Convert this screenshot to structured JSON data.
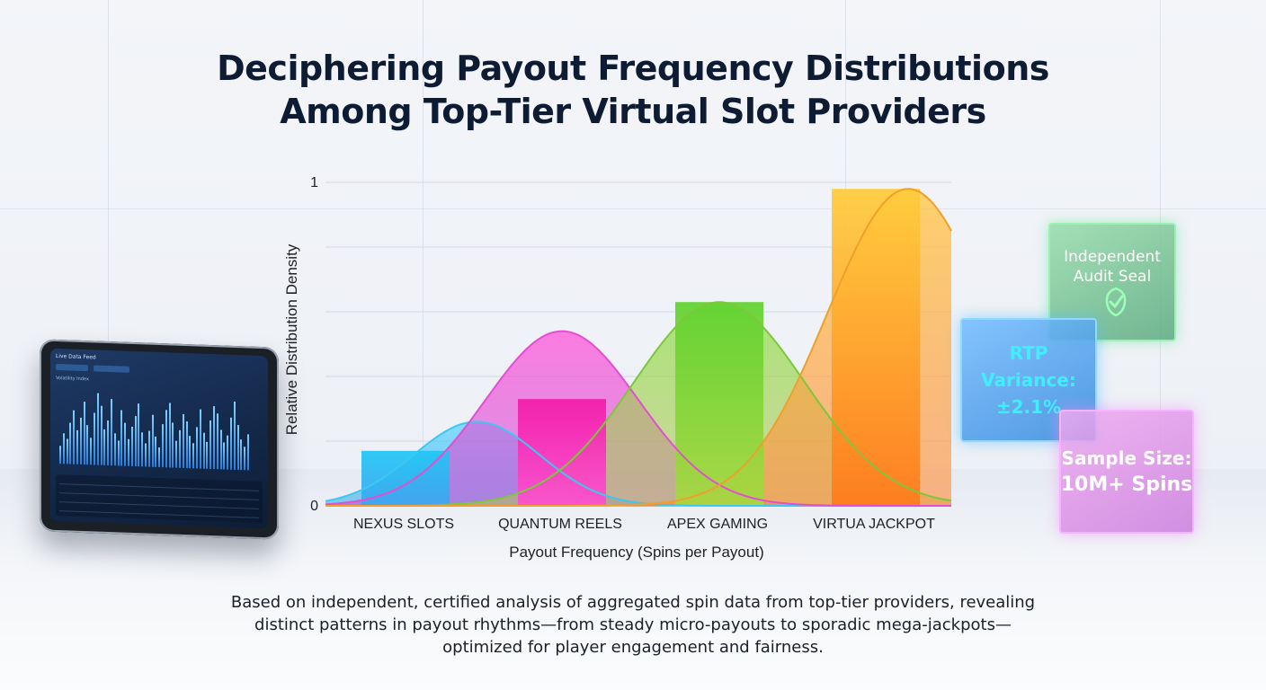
{
  "title": {
    "line1": "Deciphering Payout Frequency Distributions",
    "line2": "Among Top-Tier Virtual Slot Providers"
  },
  "chart_data": {
    "type": "area",
    "xlabel": "Payout Frequency (Spins per Payout)",
    "ylabel": "Relative Distribution Density",
    "ylim": [
      0,
      1
    ],
    "y_ticks": [
      "0",
      "1"
    ],
    "grid": true,
    "categories": [
      "NEXUS SLOTS",
      "QUANTUM REELS",
      "APEX GAMING",
      "VIRTUA JACKPOT"
    ],
    "bars": [
      0.17,
      0.33,
      0.63,
      0.98
    ],
    "series": [
      {
        "category": "NEXUS SLOTS",
        "peak": 0.26,
        "color": "#3cc8f2"
      },
      {
        "category": "QUANTUM REELS",
        "peak": 0.54,
        "color": "#f24fd2"
      },
      {
        "category": "APEX GAMING",
        "peak": 0.63,
        "color": "#8fd84a"
      },
      {
        "category": "VIRTUA JACKPOT",
        "peak": 0.98,
        "color": "#ffb22e"
      }
    ]
  },
  "caption": {
    "line1": "Based on independent, certified analysis of aggregated spin data from top-tier providers, revealing",
    "line2": "distinct patterns in payout rhythms—from steady micro-payouts to sporadic mega-jackpots—",
    "line3": "optimized for player engagement and fairness."
  },
  "cubes": {
    "audit": {
      "line1": "Independent",
      "line2": "Audit Seal",
      "icon": "check-icon"
    },
    "rtp": {
      "line1": "RTP Variance:",
      "line2": "±2.1%"
    },
    "sample": {
      "line1": "Sample Size:",
      "line2": "10M+ Spins"
    }
  },
  "tablet": {
    "header": "Live Data Feed",
    "subheader": "Volatility Index"
  },
  "colors": {
    "title": "#0e1c33",
    "nexus": "#22c6ee",
    "quantum": "#f01fb0",
    "apex": "#6fd63a",
    "virtua": "#ff8a1f"
  }
}
